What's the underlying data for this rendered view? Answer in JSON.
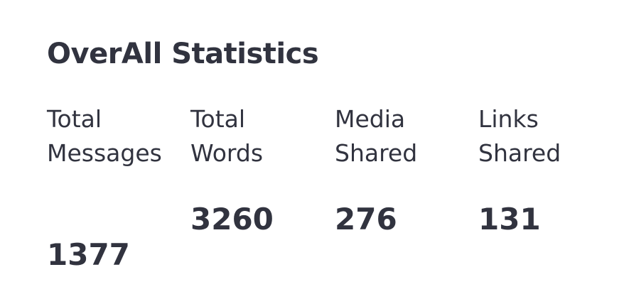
{
  "header": {
    "title": "OverAll Statistics"
  },
  "stats": [
    {
      "label_line1": "Total",
      "label_line2": "Messages",
      "value": "1377"
    },
    {
      "label_line1": "Total",
      "label_line2": "Words",
      "value": "3260"
    },
    {
      "label_line1": "Media",
      "label_line2": "Shared",
      "value": "276"
    },
    {
      "label_line1": "Links",
      "label_line2": "Shared",
      "value": "131"
    }
  ],
  "theme": {
    "text_color": "#31333f",
    "background": "#ffffff"
  }
}
